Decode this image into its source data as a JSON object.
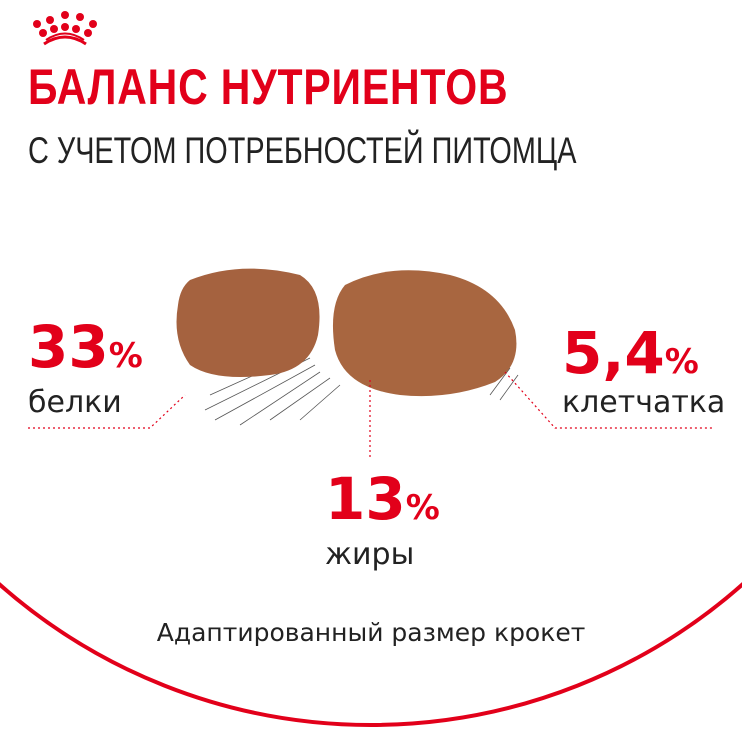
{
  "brand": {
    "logo": "Royal Canin crown",
    "color": "#e2001a"
  },
  "header": {
    "title": "БАЛАНС НУТРИЕНТОВ",
    "subtitle": "С УЧЕТОМ ПОТРЕБНОСТЕЙ ПИТОМЦА"
  },
  "nutrients": [
    {
      "value": "33",
      "unit": "%",
      "label": "белки"
    },
    {
      "value": "13",
      "unit": "%",
      "label": "жиры"
    },
    {
      "value": "5,4",
      "unit": "%",
      "label": "клетчатка"
    }
  ],
  "footer": {
    "text": "Адаптированный размер крокет"
  },
  "colors": {
    "accent": "#e2001a",
    "kibble": "#a5623f",
    "text": "#222222"
  }
}
